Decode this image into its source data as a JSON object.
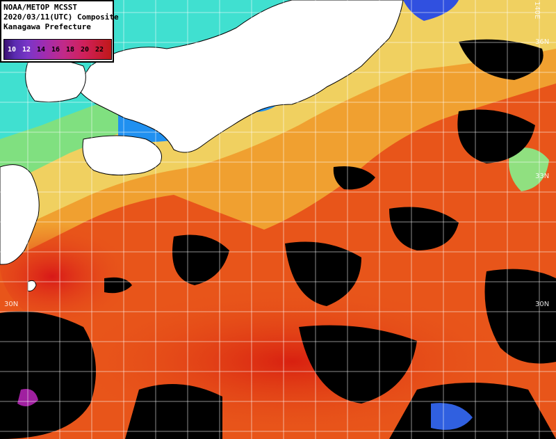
{
  "header": {
    "line1": "NOAA/METOP MCSST",
    "line2": "2020/03/11(UTC) Composite",
    "line3": "Kanagawa Prefecture"
  },
  "legend": {
    "ticks": [
      "10",
      "12",
      "14",
      "16",
      "18",
      "20",
      "22"
    ],
    "unit_scale": "sea surface temperature"
  },
  "graticule": {
    "lat_labels": [
      "36N",
      "33N",
      "30N",
      "30N"
    ],
    "lon_labels": [
      "140E"
    ]
  },
  "colors": {
    "land": "#ffffff",
    "cloud": "#000000",
    "warm_sea": "#e8551a",
    "cool_sea": "#70e080",
    "cold_sea": "#2090f0"
  }
}
